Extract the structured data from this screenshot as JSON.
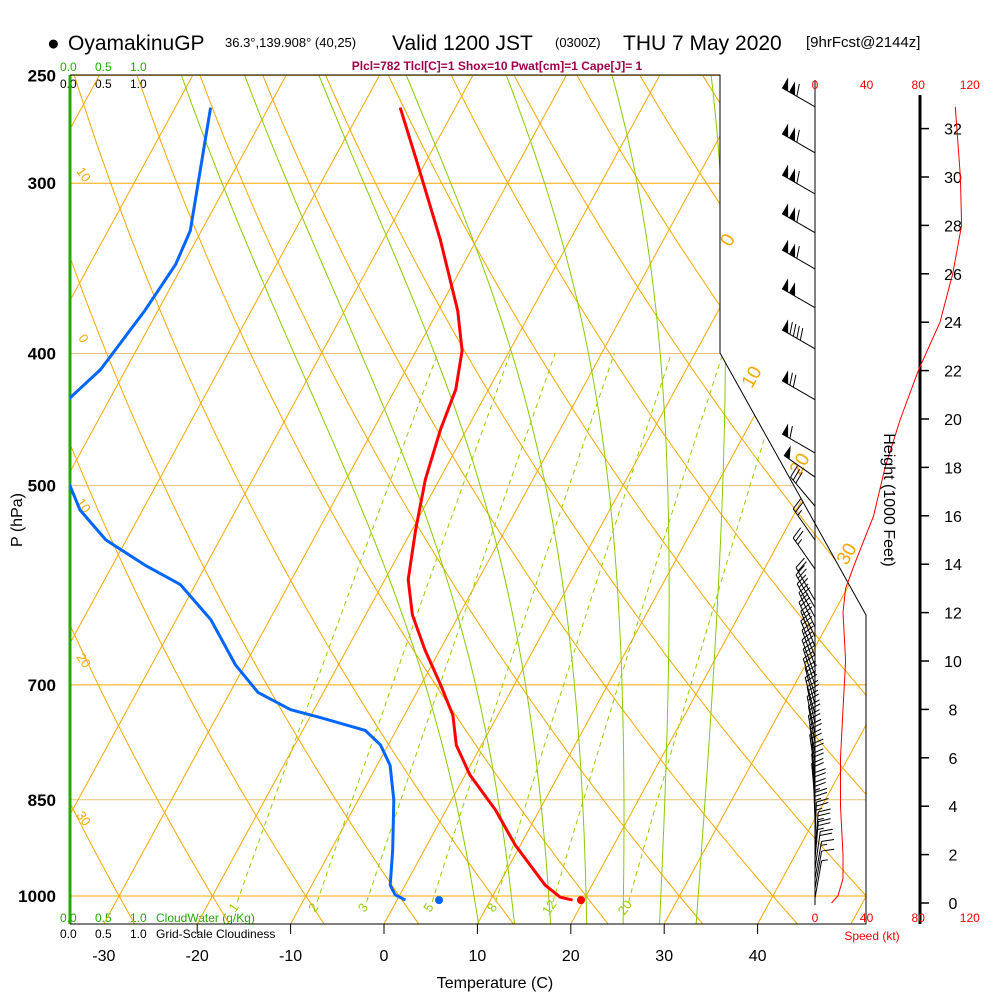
{
  "header": {
    "bullet": "●",
    "station": "OyamakinuGP",
    "coords": "36.3°,139.908° (40,25)",
    "valid": "Valid 1200 JST",
    "utc": "(0300Z)",
    "date": "THU 7 May 2020",
    "forecast": "[9hrFcst@2144z]"
  },
  "stats": "Plcl=782 Tlcl[C]=1 Shox=10 Pwat[cm]=1 Cape[J]= 1",
  "cloud": {
    "top_green": [
      "0.0",
      "0.5",
      "1.0"
    ],
    "top_black": [
      "0.0",
      "0.5",
      "1.0"
    ],
    "bottom_green": [
      "0.0",
      "0.5",
      "1.0"
    ],
    "bottom_green_label": "CloudWater (g/Kg)",
    "bottom_black": [
      "0.0",
      "0.5",
      "1.0"
    ],
    "bottom_black_label": "Grid-Scale Cloudiness"
  },
  "chart_data": {
    "type": "line",
    "subtype": "skew-T log-P sounding",
    "xlabel": "Temperature (C)",
    "ylabel": "P (hPa)",
    "y2label": "Height (1000 Feet)",
    "speed_label": "Speed (kt)",
    "pressure_ticks": [
      "250",
      "300",
      "400",
      "500",
      "700",
      "850",
      "1000"
    ],
    "pressure_values": [
      250,
      300,
      400,
      500,
      700,
      850,
      1000
    ],
    "temperature_ticks": [
      "-30",
      "-20",
      "-10",
      "0",
      "10",
      "20",
      "30",
      "40"
    ],
    "temperature_values": [
      -30,
      -20,
      -10,
      0,
      10,
      20,
      30,
      40
    ],
    "height_ticks": [
      "0",
      "2",
      "4",
      "6",
      "8",
      "10",
      "12",
      "14",
      "16",
      "18",
      "20",
      "22",
      "24",
      "26",
      "28",
      "30",
      "32"
    ],
    "speed_ticks": [
      "0",
      "40",
      "80",
      "120"
    ],
    "isotherm_labels": [
      "0",
      "10",
      "20",
      "30"
    ],
    "dry_adiabat_labels": [
      "10",
      "0",
      "10",
      "20",
      "30"
    ],
    "mixing_ratio_values": [
      1,
      2,
      3,
      5,
      8,
      12,
      20
    ],
    "mixing_ratio_labels": [
      "1",
      "2",
      "3",
      "5",
      "8",
      "12",
      "20"
    ],
    "temperature": [
      [
        264,
        -45.9
      ],
      [
        288,
        -41.2
      ],
      [
        330,
        -33.9
      ],
      [
        372,
        -27.9
      ],
      [
        398,
        -25.1
      ],
      [
        425,
        -23.5
      ],
      [
        455,
        -22.8
      ],
      [
        495,
        -21.5
      ],
      [
        539,
        -19.6
      ],
      [
        586,
        -17.5
      ],
      [
        622,
        -15.0
      ],
      [
        660,
        -11.6
      ],
      [
        700,
        -7.9
      ],
      [
        737,
        -4.8
      ],
      [
        775,
        -2.7
      ],
      [
        815,
        0.5
      ],
      [
        865,
        5.3
      ],
      [
        917,
        9.4
      ],
      [
        949,
        12.2
      ],
      [
        982,
        15.0
      ],
      [
        1002,
        17.3
      ],
      [
        1007,
        18.8
      ]
    ],
    "dewpoint": [
      [
        264,
        -66.2
      ],
      [
        293,
        -63.7
      ],
      [
        325,
        -61.2
      ],
      [
        344,
        -60.8
      ],
      [
        372,
        -61.4
      ],
      [
        411,
        -62.7
      ],
      [
        431,
        -64.3
      ],
      [
        463,
        -65.0
      ],
      [
        487,
        -63.3
      ],
      [
        500,
        -59.2
      ],
      [
        521,
        -56.7
      ],
      [
        548,
        -52.2
      ],
      [
        572,
        -46.5
      ],
      [
        591,
        -41.6
      ],
      [
        627,
        -36.3
      ],
      [
        677,
        -31.0
      ],
      [
        709,
        -27.0
      ],
      [
        730,
        -22.5
      ],
      [
        740,
        -18.8
      ],
      [
        756,
        -13.3
      ],
      [
        775,
        -10.8
      ],
      [
        802,
        -8.6
      ],
      [
        850,
        -6.2
      ],
      [
        925,
        -3.4
      ],
      [
        982,
        -1.6
      ],
      [
        998,
        -0.5
      ],
      [
        1007,
        0.9
      ]
    ],
    "surface_temperature": [
      1007,
      19.7
    ],
    "surface_dewpoint": [
      1007,
      4.5
    ],
    "wind_speed_profile_kft_kt": [
      [
        32.9,
        110
      ],
      [
        30,
        114
      ],
      [
        28,
        115
      ],
      [
        26,
        108
      ],
      [
        24,
        98
      ],
      [
        22,
        81
      ],
      [
        20,
        67
      ],
      [
        18,
        55
      ],
      [
        16,
        46
      ],
      [
        14,
        31
      ],
      [
        13,
        24
      ],
      [
        12,
        22
      ],
      [
        10,
        24
      ],
      [
        8,
        22
      ],
      [
        6,
        20
      ],
      [
        4,
        20
      ],
      [
        2,
        22
      ],
      [
        1,
        22
      ],
      [
        0.3,
        18
      ],
      [
        0,
        13
      ]
    ],
    "wind_barbs_kft_kt_deg": [
      [
        32.9,
        110,
        300
      ],
      [
        31.0,
        110,
        300
      ],
      [
        29.3,
        110,
        300
      ],
      [
        27.7,
        110,
        300
      ],
      [
        26.2,
        110,
        300
      ],
      [
        24.6,
        100,
        300
      ],
      [
        22.9,
        90,
        300
      ],
      [
        20.8,
        70,
        300
      ],
      [
        18.6,
        60,
        300
      ],
      [
        17.6,
        50,
        305
      ],
      [
        16.4,
        30,
        320
      ],
      [
        15.0,
        25,
        325
      ],
      [
        13.8,
        25,
        325
      ],
      [
        12.5,
        20,
        330
      ],
      [
        12.2,
        20,
        330
      ],
      [
        11.8,
        20,
        332
      ],
      [
        11.4,
        20,
        335
      ],
      [
        11.0,
        20,
        335
      ],
      [
        10.6,
        20,
        338
      ],
      [
        10.2,
        20,
        338
      ],
      [
        9.8,
        20,
        340
      ],
      [
        9.4,
        20,
        340
      ],
      [
        9.0,
        20,
        342
      ],
      [
        8.6,
        20,
        342
      ],
      [
        8.2,
        20,
        345
      ],
      [
        7.8,
        20,
        345
      ],
      [
        7.4,
        20,
        348
      ],
      [
        7.0,
        20,
        348
      ],
      [
        6.6,
        20,
        350
      ],
      [
        6.2,
        20,
        350
      ],
      [
        5.8,
        20,
        352
      ],
      [
        5.4,
        20,
        352
      ],
      [
        5.0,
        20,
        355
      ],
      [
        4.6,
        20,
        355
      ],
      [
        4.2,
        20,
        355
      ],
      [
        3.8,
        20,
        358
      ],
      [
        3.4,
        25,
        358
      ],
      [
        3.0,
        25,
        0
      ],
      [
        2.6,
        25,
        2
      ],
      [
        2.2,
        25,
        5
      ],
      [
        1.8,
        25,
        5
      ],
      [
        1.4,
        20,
        8
      ],
      [
        1.0,
        15,
        10
      ],
      [
        0.6,
        10,
        10
      ],
      [
        0.2,
        5,
        10
      ]
    ],
    "colors": {
      "temperature": "#ff0000",
      "dewpoint": "#0066ff",
      "isotherm": "#f5a800",
      "moist_adiabat": "#88cc00",
      "mixing_ratio": "#99cc00",
      "wind_speed": "#ff0000"
    }
  }
}
